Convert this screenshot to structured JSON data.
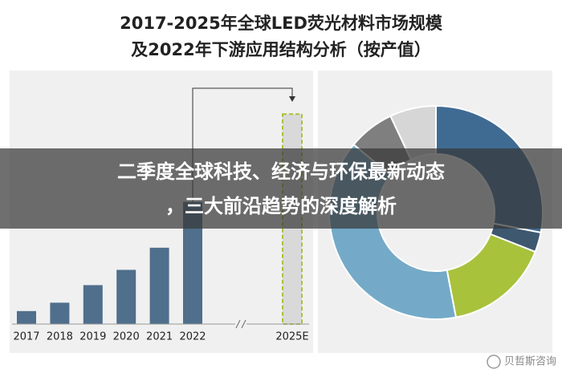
{
  "title": [
    "2017-2025年全球LED荧光材料市场规模",
    "及2022年下游应用结构分析（按产值）"
  ],
  "chart_data": [
    {
      "type": "bar",
      "categories": [
        "2017",
        "2018",
        "2019",
        "2020",
        "2021",
        "2022",
        "2025E"
      ],
      "values": [
        17,
        28,
        51,
        71,
        100,
        160,
        275
      ],
      "color": "#4f6f8c",
      "ylim": [
        0,
        290
      ]
    },
    {
      "type": "pie",
      "donut": true,
      "values": [
        28,
        3,
        16,
        39,
        7,
        7
      ],
      "colors": [
        "#3f6b93",
        "#3e5870",
        "#a8c23c",
        "#74aac8",
        "#7f7f7f",
        "#d6d6d6"
      ]
    }
  ],
  "banner": [
    "二季度全球科技、经济与环保最新动态",
    "，三大前沿趋势的深度解析"
  ],
  "watermark": "贝哲斯咨询"
}
